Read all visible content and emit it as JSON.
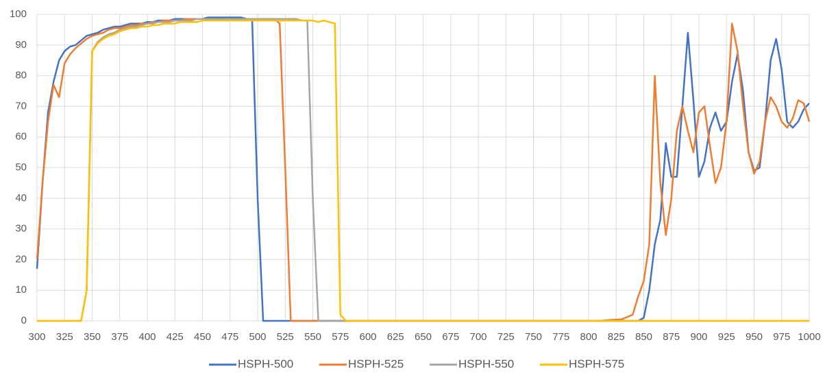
{
  "chart_data": {
    "type": "line",
    "x": [
      300,
      305,
      310,
      315,
      320,
      325,
      330,
      335,
      340,
      345,
      350,
      355,
      360,
      365,
      370,
      375,
      380,
      385,
      390,
      395,
      400,
      405,
      410,
      415,
      420,
      425,
      430,
      435,
      440,
      445,
      450,
      455,
      460,
      465,
      470,
      475,
      480,
      485,
      490,
      495,
      500,
      505,
      510,
      515,
      520,
      525,
      530,
      535,
      540,
      545,
      550,
      555,
      560,
      565,
      570,
      575,
      580,
      585,
      590,
      595,
      600,
      625,
      650,
      675,
      700,
      725,
      750,
      775,
      800,
      810,
      820,
      830,
      840,
      845,
      850,
      855,
      860,
      865,
      870,
      875,
      880,
      885,
      890,
      895,
      900,
      905,
      910,
      915,
      920,
      925,
      930,
      935,
      940,
      945,
      950,
      955,
      960,
      965,
      970,
      975,
      980,
      985,
      990,
      995,
      1000
    ],
    "series": [
      {
        "name": "HSPH-500",
        "color": "#4472c4",
        "values": [
          17,
          45,
          68,
          78,
          85,
          88,
          89.5,
          90,
          91.5,
          93,
          93.5,
          94,
          95,
          95.5,
          96,
          96,
          96.5,
          97,
          97,
          97,
          97.5,
          97.5,
          98,
          98,
          98,
          98.5,
          98.5,
          98.5,
          98.5,
          98.5,
          98.5,
          99,
          99,
          99,
          99,
          99,
          99,
          99,
          98.5,
          98.5,
          40,
          0,
          0,
          0,
          0,
          0,
          0,
          0,
          0,
          0,
          0,
          0,
          0,
          0,
          0,
          0,
          0,
          0,
          0,
          0,
          0,
          0,
          0,
          0,
          0,
          0,
          0,
          0,
          0,
          0,
          0,
          0,
          0,
          0,
          1,
          10,
          25,
          33,
          58,
          47,
          47,
          70,
          94,
          72,
          47,
          52,
          63,
          68,
          62,
          65,
          78,
          87,
          75,
          55,
          49,
          50,
          65,
          85,
          92,
          82,
          65,
          63,
          65,
          69,
          71
        ]
      },
      {
        "name": "HSPH-525",
        "color": "#ed7d31",
        "values": [
          20,
          45,
          65,
          77,
          73,
          84,
          87,
          89,
          90.5,
          92,
          93,
          93.5,
          94,
          95,
          95.5,
          95.5,
          96,
          96.5,
          96.5,
          97,
          97,
          97.5,
          97.5,
          98,
          98,
          98,
          98,
          98.5,
          98.5,
          98.5,
          98.5,
          98.5,
          98.5,
          98.5,
          98.5,
          98.5,
          98.5,
          98.5,
          98.5,
          98.5,
          98.5,
          98.5,
          98.5,
          98.5,
          97,
          50,
          0,
          0,
          0,
          0,
          0,
          0,
          0,
          0,
          0,
          0,
          0,
          0,
          0,
          0,
          0,
          0,
          0,
          0,
          0,
          0,
          0,
          0,
          0,
          0,
          0.3,
          0.5,
          2,
          8,
          13,
          25,
          80,
          45,
          28,
          40,
          62,
          70,
          62,
          55,
          68,
          70,
          57,
          45,
          50,
          65,
          97,
          88,
          70,
          55,
          48,
          52,
          65,
          73,
          70,
          65,
          63,
          66,
          72,
          71,
          65
        ]
      },
      {
        "name": "HSPH-550",
        "color": "#a5a5a5",
        "values": [
          0,
          0,
          0,
          0,
          0,
          0,
          0,
          0,
          0,
          10,
          88,
          91,
          92.5,
          93.5,
          94,
          95,
          95.5,
          96,
          96,
          96.5,
          97,
          97,
          97.5,
          97.5,
          97.5,
          98,
          98,
          98,
          98,
          98.5,
          98.5,
          98.5,
          98.5,
          98.5,
          98.5,
          98.5,
          98.5,
          98.5,
          98.5,
          98.5,
          98.5,
          98.5,
          98.5,
          98.5,
          98.5,
          98.5,
          98.5,
          98.5,
          98,
          98,
          40,
          0,
          0,
          0,
          0,
          0,
          0,
          0,
          0,
          0,
          0,
          0,
          0,
          0,
          0,
          0,
          0,
          0,
          0,
          0,
          0,
          0,
          0,
          0,
          0,
          0,
          0,
          0,
          0,
          0,
          0,
          0,
          0,
          0,
          0,
          0,
          0,
          0,
          0,
          0,
          0,
          0,
          0,
          0,
          0,
          0,
          0,
          0,
          0,
          0,
          0,
          0,
          0,
          0,
          0
        ]
      },
      {
        "name": "HSPH-575",
        "color": "#ffc000",
        "values": [
          0,
          0,
          0,
          0,
          0,
          0,
          0,
          0,
          0,
          10,
          88,
          90.5,
          92,
          93,
          93.5,
          94.5,
          95,
          95.5,
          95.5,
          96,
          96,
          96.5,
          96.5,
          97,
          97,
          97,
          97.5,
          97.5,
          97.5,
          97.5,
          98,
          98,
          98,
          98,
          98,
          98,
          98,
          98,
          98,
          98,
          98,
          98,
          98,
          98,
          98,
          98,
          98,
          98,
          98,
          98,
          98,
          97.5,
          98,
          97.5,
          97,
          2,
          0,
          0,
          0,
          0,
          0,
          0,
          0,
          0,
          0,
          0,
          0,
          0,
          0,
          0,
          0,
          0,
          0,
          0,
          0,
          0,
          0,
          0,
          0,
          0,
          0,
          0,
          0,
          0,
          0,
          0,
          0,
          0,
          0,
          0,
          0,
          0,
          0,
          0,
          0,
          0,
          0,
          0,
          0,
          0,
          0,
          0,
          0,
          0,
          0
        ]
      }
    ],
    "xlim": [
      300,
      1000
    ],
    "xticks": [
      300,
      325,
      350,
      375,
      400,
      425,
      450,
      475,
      500,
      525,
      550,
      575,
      600,
      625,
      650,
      675,
      700,
      725,
      750,
      775,
      800,
      825,
      850,
      875,
      900,
      925,
      950,
      975,
      1000
    ],
    "ylim": [
      0,
      100
    ],
    "yticks": [
      0,
      10,
      20,
      30,
      40,
      50,
      60,
      70,
      80,
      90,
      100
    ],
    "grid": true,
    "legend": "bottom"
  }
}
